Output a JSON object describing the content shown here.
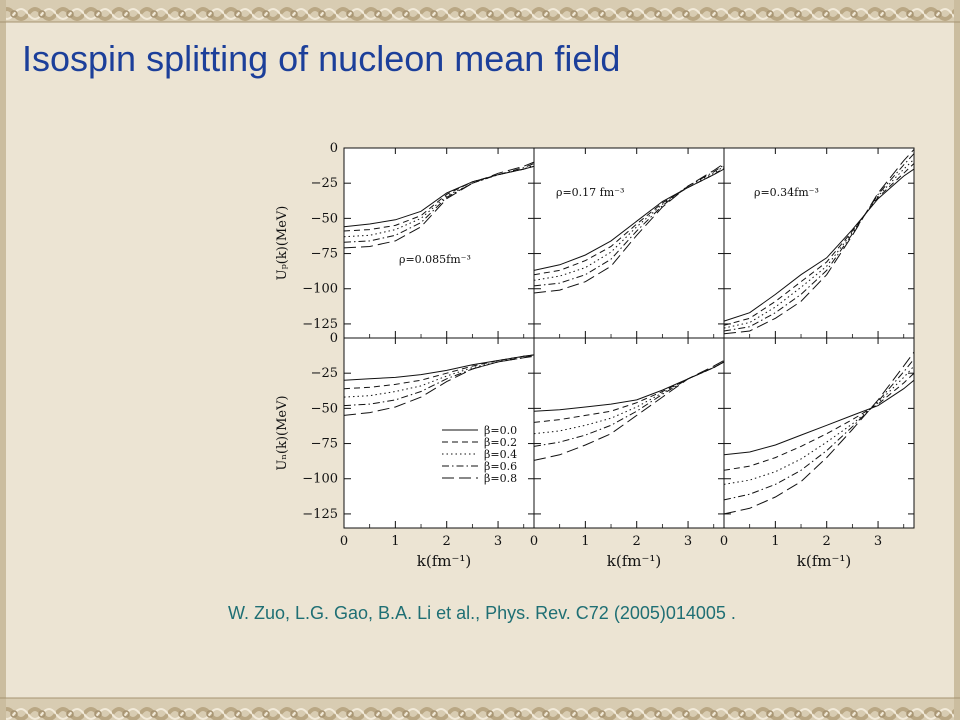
{
  "slide": {
    "title": "Isospin splitting of nucleon mean field",
    "citation": "W. Zuo, L.G. Gao, B.A. Li et al., Phys. Rev. C72 (2005)014005 ."
  },
  "colors": {
    "title": "#1c3f9a",
    "citation": "#1f6f74",
    "border": "#c9b99b",
    "background": "#ece4d3"
  },
  "chart_data": {
    "type": "line",
    "layout": "2x3 grid of panels sharing axes",
    "xlabel": "k(fm⁻¹)",
    "xlim": [
      0,
      3.7
    ],
    "x_ticks": [
      0,
      1,
      2,
      3
    ],
    "rows": [
      {
        "ylabel": "Uₚ(k)(MeV)",
        "ylim": [
          -135,
          0
        ],
        "y_ticks": [
          0,
          -25,
          -50,
          -75,
          -100,
          -125
        ]
      },
      {
        "ylabel": "Uₙ(k)(MeV)",
        "ylim": [
          -135,
          0
        ],
        "y_ticks": [
          0,
          -25,
          -50,
          -75,
          -100,
          -125
        ]
      }
    ],
    "legend": {
      "position": "lower-right of bottom-left panel",
      "entries": [
        "β=0.0",
        "β=0.2",
        "β=0.4",
        "β=0.6",
        "β=0.8"
      ],
      "styles": [
        "solid",
        "dashed",
        "dotted",
        "dashdot",
        "longdash"
      ]
    },
    "panels": [
      {
        "row": 0,
        "col": 0,
        "annotation": "ρ=0.085fm⁻³",
        "x": [
          0,
          0.5,
          1,
          1.5,
          2,
          2.5,
          3,
          3.5,
          3.7
        ],
        "series": [
          {
            "name": "β=0.0",
            "values": [
              -56,
              -54,
              -51,
              -45,
              -32,
              -24,
              -19,
              -15,
              -13
            ]
          },
          {
            "name": "β=0.2",
            "values": [
              -59,
              -58,
              -55,
              -48,
              -33,
              -24,
              -19,
              -15,
              -13
            ]
          },
          {
            "name": "β=0.4",
            "values": [
              -63,
              -62,
              -58,
              -50,
              -34,
              -25,
              -19,
              -15,
              -12
            ]
          },
          {
            "name": "β=0.6",
            "values": [
              -67,
              -66,
              -62,
              -53,
              -35,
              -25,
              -19,
              -14,
              -11
            ]
          },
          {
            "name": "β=0.8",
            "values": [
              -71,
              -70,
              -66,
              -56,
              -36,
              -25,
              -18,
              -13,
              -10
            ]
          }
        ]
      },
      {
        "row": 0,
        "col": 1,
        "annotation": "ρ=0.17 fm⁻³",
        "x": [
          0,
          0.5,
          1,
          1.5,
          2,
          2.5,
          3,
          3.5,
          3.7
        ],
        "series": [
          {
            "name": "β=0.0",
            "values": [
              -87,
              -83,
              -76,
              -66,
              -52,
              -38,
              -28,
              -19,
              -15
            ]
          },
          {
            "name": "β=0.2",
            "values": [
              -90,
              -87,
              -80,
              -70,
              -54,
              -39,
              -28,
              -19,
              -14
            ]
          },
          {
            "name": "β=0.4",
            "values": [
              -94,
              -91,
              -85,
              -74,
              -56,
              -40,
              -27,
              -18,
              -13
            ]
          },
          {
            "name": "β=0.6",
            "values": [
              -98,
              -96,
              -90,
              -79,
              -59,
              -41,
              -27,
              -17,
              -12
            ]
          },
          {
            "name": "β=0.8",
            "values": [
              -103,
              -101,
              -95,
              -84,
              -62,
              -42,
              -27,
              -16,
              -11
            ]
          }
        ]
      },
      {
        "row": 0,
        "col": 2,
        "annotation": "ρ=0.34fm⁻³",
        "x": [
          0,
          0.5,
          1,
          1.5,
          2,
          2.5,
          3,
          3.5,
          3.7
        ],
        "series": [
          {
            "name": "β=0.0",
            "values": [
              -123,
              -117,
              -104,
              -90,
              -78,
              -58,
              -36,
              -20,
              -15
            ]
          },
          {
            "name": "β=0.2",
            "values": [
              -126,
              -121,
              -109,
              -95,
              -81,
              -59,
              -35,
              -18,
              -11
            ]
          },
          {
            "name": "β=0.4",
            "values": [
              -128,
              -124,
              -113,
              -99,
              -84,
              -60,
              -34,
              -15,
              -8
            ]
          },
          {
            "name": "β=0.6",
            "values": [
              -130,
              -127,
              -117,
              -104,
              -87,
              -61,
              -33,
              -12,
              -4
            ]
          },
          {
            "name": "β=0.8",
            "values": [
              -132,
              -130,
              -121,
              -109,
              -90,
              -62,
              -32,
              -9,
              -1
            ]
          }
        ]
      },
      {
        "row": 1,
        "col": 0,
        "annotation": "",
        "x": [
          0,
          0.5,
          1,
          1.5,
          2,
          2.5,
          3,
          3.5,
          3.7
        ],
        "series": [
          {
            "name": "β=0.0",
            "values": [
              -30,
              -29,
              -28,
              -26,
              -23,
              -19,
              -16,
              -13,
              -12
            ]
          },
          {
            "name": "β=0.2",
            "values": [
              -36,
              -35,
              -33,
              -30,
              -25,
              -20,
              -16,
              -13,
              -12
            ]
          },
          {
            "name": "β=0.4",
            "values": [
              -42,
              -41,
              -38,
              -34,
              -27,
              -21,
              -17,
              -13,
              -12
            ]
          },
          {
            "name": "β=0.6",
            "values": [
              -48,
              -47,
              -44,
              -38,
              -29,
              -22,
              -17,
              -14,
              -12
            ]
          },
          {
            "name": "β=0.8",
            "values": [
              -55,
              -53,
              -49,
              -42,
              -31,
              -22,
              -17,
              -14,
              -13
            ]
          }
        ]
      },
      {
        "row": 1,
        "col": 1,
        "annotation": "",
        "x": [
          0,
          0.5,
          1,
          1.5,
          2,
          2.5,
          3,
          3.5,
          3.7
        ],
        "series": [
          {
            "name": "β=0.0",
            "values": [
              -52,
              -51,
              -49,
              -47,
              -44,
              -37,
              -29,
              -21,
              -17
            ]
          },
          {
            "name": "β=0.2",
            "values": [
              -60,
              -58,
              -55,
              -52,
              -46,
              -38,
              -29,
              -21,
              -17
            ]
          },
          {
            "name": "β=0.4",
            "values": [
              -68,
              -66,
              -62,
              -57,
              -49,
              -39,
              -29,
              -21,
              -17
            ]
          },
          {
            "name": "β=0.6",
            "values": [
              -77,
              -74,
              -69,
              -62,
              -52,
              -40,
              -29,
              -21,
              -17
            ]
          },
          {
            "name": "β=0.8",
            "values": [
              -87,
              -83,
              -76,
              -68,
              -55,
              -42,
              -29,
              -20,
              -16
            ]
          }
        ]
      },
      {
        "row": 1,
        "col": 2,
        "annotation": "",
        "x": [
          0,
          0.5,
          1,
          1.5,
          2,
          2.5,
          3,
          3.5,
          3.7
        ],
        "series": [
          {
            "name": "β=0.0",
            "values": [
              -83,
              -81,
              -76,
              -69,
              -62,
              -55,
              -48,
              -36,
              -30
            ]
          },
          {
            "name": "β=0.2",
            "values": [
              -94,
              -91,
              -85,
              -77,
              -68,
              -58,
              -47,
              -32,
              -25
            ]
          },
          {
            "name": "β=0.4",
            "values": [
              -104,
              -101,
              -95,
              -86,
              -74,
              -61,
              -46,
              -28,
              -20
            ]
          },
          {
            "name": "β=0.6",
            "values": [
              -115,
              -111,
              -104,
              -94,
              -80,
              -63,
              -45,
              -24,
              -15
            ]
          },
          {
            "name": "β=0.8",
            "values": [
              -125,
              -121,
              -113,
              -102,
              -85,
              -65,
              -44,
              -20,
              -10
            ]
          }
        ]
      }
    ]
  }
}
